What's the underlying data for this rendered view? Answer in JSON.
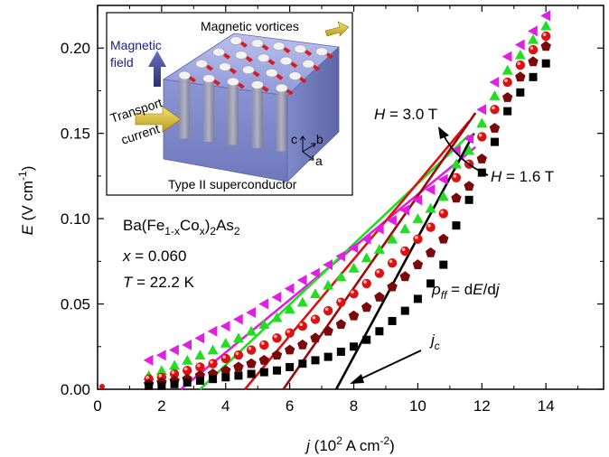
{
  "chart_data": {
    "type": "scatter",
    "xlabel": {
      "var": "j",
      "rest": " (10",
      "sup1": "2",
      "mid": " A cm",
      "sup2": "-2",
      "end": ")"
    },
    "ylabel": {
      "var": "E",
      "rest": " (V cm",
      "sup": "-1",
      "end": ")"
    },
    "xlim": [
      0,
      15.8
    ],
    "ylim": [
      0,
      0.225
    ],
    "xticks": [
      "0",
      "2",
      "4",
      "6",
      "8",
      "10",
      "12",
      "14"
    ],
    "yticks": [
      "0.00",
      "0.05",
      "0.10",
      "0.15",
      "0.20"
    ],
    "series": [
      {
        "marker": "triangle-left",
        "color": "#e020e0",
        "x": [
          1.6,
          2.0,
          2.4,
          2.8,
          3.2,
          3.6,
          4.0,
          4.4,
          4.8,
          5.2,
          5.6,
          6.0,
          6.4,
          6.8,
          7.2,
          7.6,
          8.0,
          8.4,
          8.8,
          9.2,
          9.6,
          10.0,
          10.4,
          10.8,
          11.2,
          11.6,
          12.0,
          12.4,
          12.8,
          13.2,
          13.6,
          14.0
        ],
        "y": [
          0.017,
          0.02,
          0.023,
          0.026,
          0.03,
          0.034,
          0.037,
          0.041,
          0.045,
          0.05,
          0.054,
          0.059,
          0.064,
          0.068,
          0.073,
          0.078,
          0.083,
          0.088,
          0.094,
          0.099,
          0.105,
          0.111,
          0.117,
          0.123,
          0.14,
          0.147,
          0.164,
          0.18,
          0.195,
          0.202,
          0.21,
          0.219
        ]
      },
      {
        "marker": "triangle-up",
        "color": "#22dd22",
        "x": [
          1.6,
          2.0,
          2.4,
          2.8,
          3.2,
          3.6,
          4.0,
          4.4,
          4.8,
          5.2,
          5.6,
          6.0,
          6.4,
          6.8,
          7.2,
          7.6,
          8.0,
          8.4,
          8.8,
          9.2,
          9.6,
          10.0,
          10.4,
          10.8,
          11.2,
          11.6,
          12.0,
          12.4,
          12.8,
          13.2,
          13.6,
          14.0
        ],
        "y": [
          0.008,
          0.011,
          0.014,
          0.017,
          0.02,
          0.023,
          0.027,
          0.03,
          0.034,
          0.038,
          0.042,
          0.047,
          0.051,
          0.056,
          0.061,
          0.066,
          0.071,
          0.077,
          0.082,
          0.088,
          0.094,
          0.1,
          0.106,
          0.113,
          0.132,
          0.14,
          0.156,
          0.172,
          0.187,
          0.196,
          0.205,
          0.213
        ]
      },
      {
        "marker": "circle",
        "color": "#dd1111",
        "x": [
          1.6,
          2.0,
          2.4,
          2.8,
          3.2,
          3.6,
          4.0,
          4.4,
          4.8,
          5.2,
          5.6,
          6.0,
          6.4,
          6.8,
          7.2,
          7.6,
          8.0,
          8.4,
          8.8,
          9.2,
          9.6,
          10.0,
          10.4,
          10.8,
          11.2,
          11.6,
          12.0,
          12.4,
          12.8,
          13.2,
          13.6,
          14.0
        ],
        "y": [
          0.006,
          0.007,
          0.009,
          0.011,
          0.013,
          0.015,
          0.018,
          0.02,
          0.023,
          0.026,
          0.03,
          0.033,
          0.037,
          0.041,
          0.046,
          0.051,
          0.056,
          0.062,
          0.068,
          0.074,
          0.081,
          0.088,
          0.095,
          0.103,
          0.124,
          0.132,
          0.148,
          0.164,
          0.18,
          0.19,
          0.199,
          0.207
        ]
      },
      {
        "marker": "pentagon",
        "color": "#7a0a0a",
        "x": [
          1.6,
          2.0,
          2.4,
          2.8,
          3.2,
          3.6,
          4.0,
          4.4,
          4.8,
          5.2,
          5.6,
          6.0,
          6.4,
          6.8,
          7.2,
          7.6,
          8.0,
          8.4,
          8.8,
          9.2,
          9.6,
          10.0,
          10.4,
          10.8,
          11.2,
          11.6,
          12.0,
          12.4,
          12.8,
          13.2,
          13.6,
          14.0
        ],
        "y": [
          0.003,
          0.004,
          0.005,
          0.006,
          0.008,
          0.009,
          0.011,
          0.013,
          0.015,
          0.017,
          0.02,
          0.023,
          0.026,
          0.03,
          0.034,
          0.038,
          0.043,
          0.048,
          0.054,
          0.06,
          0.066,
          0.073,
          0.08,
          0.088,
          0.112,
          0.119,
          0.135,
          0.153,
          0.171,
          0.183,
          0.192,
          0.201
        ]
      },
      {
        "marker": "square",
        "color": "#000000",
        "x": [
          1.6,
          2.0,
          2.4,
          2.8,
          3.2,
          3.6,
          4.0,
          4.4,
          4.8,
          5.2,
          5.6,
          6.0,
          6.4,
          6.8,
          7.2,
          7.6,
          8.0,
          8.4,
          8.8,
          9.2,
          9.6,
          10.0,
          10.4,
          10.8,
          11.2,
          11.6,
          12.0,
          12.4,
          12.8,
          13.2,
          13.6,
          14.0
        ],
        "y": [
          0.002,
          0.002,
          0.003,
          0.004,
          0.005,
          0.006,
          0.007,
          0.008,
          0.009,
          0.01,
          0.011,
          0.013,
          0.015,
          0.017,
          0.019,
          0.022,
          0.025,
          0.029,
          0.034,
          0.04,
          0.046,
          0.053,
          0.062,
          0.073,
          0.096,
          0.111,
          0.127,
          0.145,
          0.163,
          0.174,
          0.183,
          0.191
        ]
      }
    ],
    "fit_lines": [
      {
        "color": "#e020e0",
        "from": [
          2.6,
          0.0
        ],
        "to": [
          11.8,
          0.142
        ]
      },
      {
        "color": "#22dd22",
        "from": [
          3.2,
          0.0
        ],
        "to": [
          11.6,
          0.149
        ]
      },
      {
        "color": "#dd1111",
        "from": [
          4.6,
          0.0
        ],
        "to": [
          11.6,
          0.157
        ]
      },
      {
        "color": "#9a0a0a",
        "from": [
          5.8,
          0.0
        ],
        "to": [
          11.8,
          0.162
        ]
      },
      {
        "color": "#000000",
        "from": [
          7.45,
          0.0
        ],
        "to": [
          11.75,
          0.15
        ]
      }
    ],
    "annotations": {
      "compound": {
        "a": "Ba(Fe",
        "sub1": "1-x",
        "b": "Co",
        "sub2": "x",
        "c": ")",
        "sub3": "2",
        "d": "As",
        "sub4": "2"
      },
      "x_line": {
        "var": "x",
        "rest": " = 0.060"
      },
      "t_line": {
        "var": "T",
        "rest": " = 22.2 K"
      },
      "h_high": {
        "var": "H",
        "rest": " = 3.0 T"
      },
      "h_low": {
        "var": "H",
        "rest": " = 1.6 T"
      },
      "rho": {
        "sym": "ρ",
        "sub": "ff",
        "eq": " = d",
        "e": "E",
        "slash": "/d",
        "j": "j"
      },
      "jc": {
        "var": "j",
        "sub": "c"
      }
    },
    "inset": {
      "magnetic_vortices": "Magnetic vortices",
      "magnetic": "Magnetic",
      "field": "field",
      "transport": "Transport",
      "current": "current",
      "type2": "Type II superconductor",
      "axis_c": "c",
      "axis_b": "b",
      "axis_a": "a"
    }
  }
}
